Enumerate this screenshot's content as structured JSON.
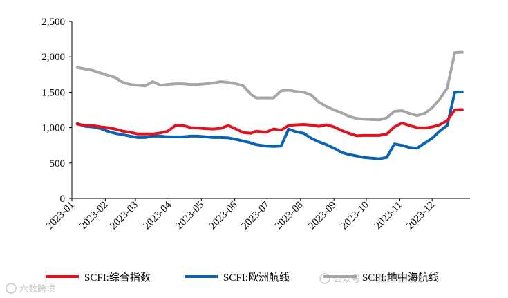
{
  "chart_data": {
    "type": "line",
    "title": "",
    "xlabel": "",
    "ylabel": "",
    "ylim": [
      0,
      2500
    ],
    "yticks": [
      "2,500",
      "2,000",
      "1,500",
      "1,000",
      "500",
      "0"
    ],
    "ytick_values": [
      2500,
      2000,
      1500,
      1000,
      500,
      0
    ],
    "xticks": [
      "2023-01",
      "2023-02",
      "2023-03",
      "2023-04",
      "2023-05",
      "2023-06",
      "2023-07",
      "2023-08",
      "2023-09",
      "2023-10",
      "2023-11",
      "2023-12"
    ],
    "grid": false,
    "legend_position": "bottom",
    "x": [
      "2023-01-06",
      "2023-01-13",
      "2023-01-20",
      "2023-01-28",
      "2023-02-03",
      "2023-02-10",
      "2023-02-17",
      "2023-02-24",
      "2023-03-03",
      "2023-03-10",
      "2023-03-17",
      "2023-03-24",
      "2023-03-31",
      "2023-04-07",
      "2023-04-14",
      "2023-04-21",
      "2023-04-28",
      "2023-05-05",
      "2023-05-12",
      "2023-05-19",
      "2023-05-26",
      "2023-06-02",
      "2023-06-09",
      "2023-06-16",
      "2023-06-21",
      "2023-06-30",
      "2023-07-07",
      "2023-07-14",
      "2023-07-21",
      "2023-07-28",
      "2023-08-04",
      "2023-08-11",
      "2023-08-18",
      "2023-08-25",
      "2023-09-01",
      "2023-09-08",
      "2023-09-15",
      "2023-09-22",
      "2023-09-28",
      "2023-10-13",
      "2023-10-20",
      "2023-10-27",
      "2023-11-03",
      "2023-11-10",
      "2023-11-17",
      "2023-11-24",
      "2023-12-01",
      "2023-12-08",
      "2023-12-15",
      "2023-12-22",
      "2023-12-29"
    ],
    "series": [
      {
        "name": "SCFI:综合指数",
        "color": "#e0121e",
        "values": [
          1050,
          1030,
          1030,
          1010,
          1000,
          980,
          950,
          935,
          910,
          910,
          910,
          925,
          950,
          1030,
          1030,
          1000,
          995,
          985,
          980,
          990,
          1030,
          980,
          930,
          920,
          950,
          935,
          980,
          965,
          1030,
          1040,
          1045,
          1035,
          1020,
          1040,
          1010,
          960,
          920,
          885,
          890,
          890,
          910,
          1010,
          1065,
          1030,
          1000,
          995,
          1010,
          1040,
          1100,
          1250,
          1255
        ]
      },
      {
        "name": "SCFI:欧洲航线",
        "color": "#0a62b4",
        "values": [
          1060,
          1020,
          1010,
          985,
          950,
          920,
          900,
          880,
          860,
          860,
          880,
          880,
          870,
          870,
          870,
          880,
          880,
          870,
          860,
          860,
          855,
          835,
          810,
          785,
          760,
          740,
          735,
          740,
          980,
          940,
          920,
          850,
          800,
          760,
          710,
          650,
          620,
          600,
          580,
          560,
          580,
          770,
          750,
          720,
          710,
          780,
          850,
          950,
          1030,
          1500,
          1505
        ]
      },
      {
        "name": "SCFI:地中海航线",
        "color": "#a6a6a6",
        "values": [
          1850,
          1830,
          1810,
          1770,
          1740,
          1710,
          1640,
          1610,
          1600,
          1590,
          1650,
          1600,
          1610,
          1620,
          1620,
          1610,
          1610,
          1620,
          1630,
          1650,
          1640,
          1620,
          1590,
          1470,
          1420,
          1420,
          1420,
          1520,
          1530,
          1510,
          1500,
          1460,
          1360,
          1300,
          1250,
          1210,
          1160,
          1130,
          1120,
          1110,
          1140,
          1230,
          1240,
          1200,
          1170,
          1200,
          1280,
          1400,
          1560,
          2060,
          2065
        ]
      }
    ]
  },
  "watermarks": {
    "left": "六数跨境",
    "right": "公众号 · 六数跨境物流"
  }
}
